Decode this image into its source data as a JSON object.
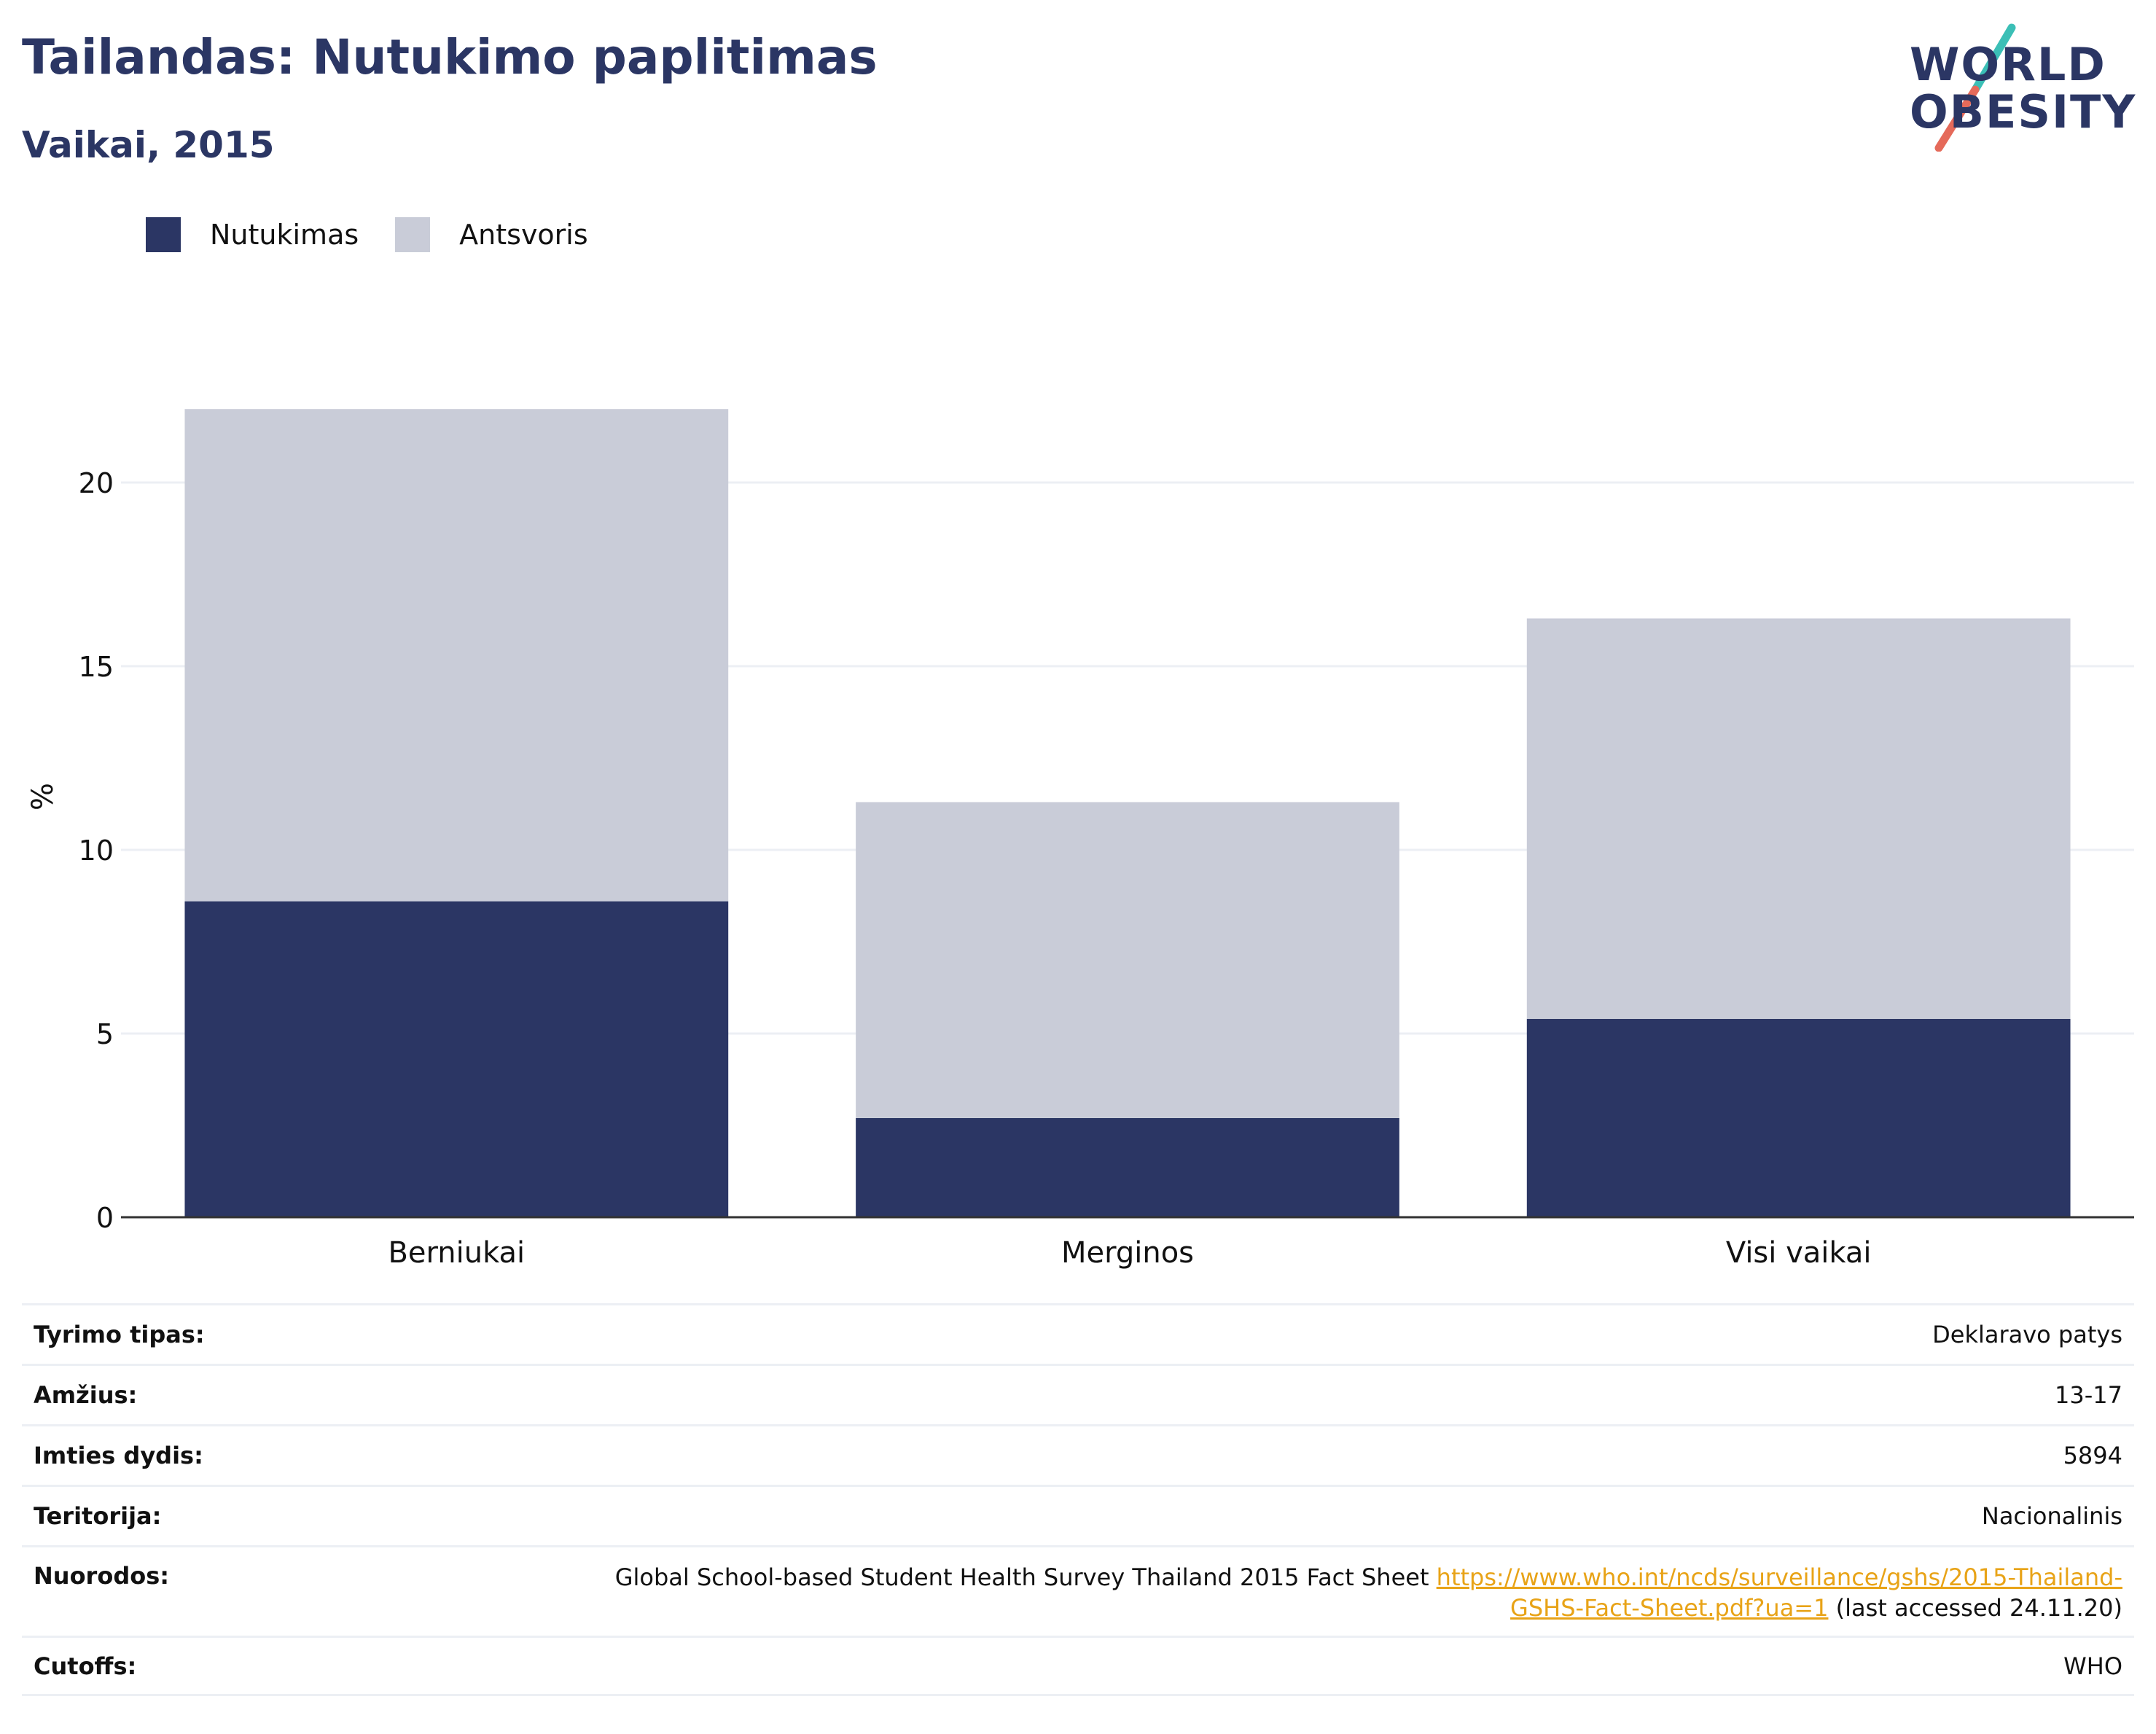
{
  "header": {
    "title": "Tailandas: Nutukimo paplitimas",
    "subtitle": "Vaikai, 2015"
  },
  "logo": {
    "line1": "WORLD",
    "line2": "OBESITY"
  },
  "colors": {
    "obesity": "#2b3664",
    "overweight": "#c9ccd8",
    "title": "#2b3664",
    "link": "#e8a317",
    "logo_teal": "#3bbfb6",
    "logo_coral": "#e56a5a"
  },
  "chart_data": {
    "type": "bar",
    "stacked": true,
    "categories": [
      "Berniukai",
      "Merginos",
      "Visi vaikai"
    ],
    "series": [
      {
        "name": "Nutukimas",
        "values": [
          8.6,
          2.7,
          5.4
        ]
      },
      {
        "name": "Antsvoris",
        "values": [
          13.4,
          8.6,
          10.9
        ]
      }
    ],
    "ylabel": "%",
    "ylim": [
      0,
      22.5
    ],
    "yticks": [
      0,
      5,
      10,
      15,
      20
    ],
    "grid": true,
    "legend": "top-left"
  },
  "table": {
    "rows": [
      {
        "label": "Tyrimo tipas:",
        "value": "Deklaravo patys"
      },
      {
        "label": "Amžius:",
        "value": "13-17"
      },
      {
        "label": "Imties dydis:",
        "value": "5894"
      },
      {
        "label": "Teritorija:",
        "value": "Nacionalinis"
      }
    ],
    "references": {
      "label": "Nuorodos:",
      "text": "Global School-based Student Health Survey Thailand 2015 Fact Sheet",
      "url_line1": "https://www.who.int/ncds/surveillance/gshs/2015-Thailand-",
      "url_line2": "GSHS-Fact-Sheet.pdf?ua=1",
      "suffix": "(last accessed 24.11.20)"
    },
    "cutoffs": {
      "label": "Cutoffs:",
      "value": "WHO"
    }
  }
}
